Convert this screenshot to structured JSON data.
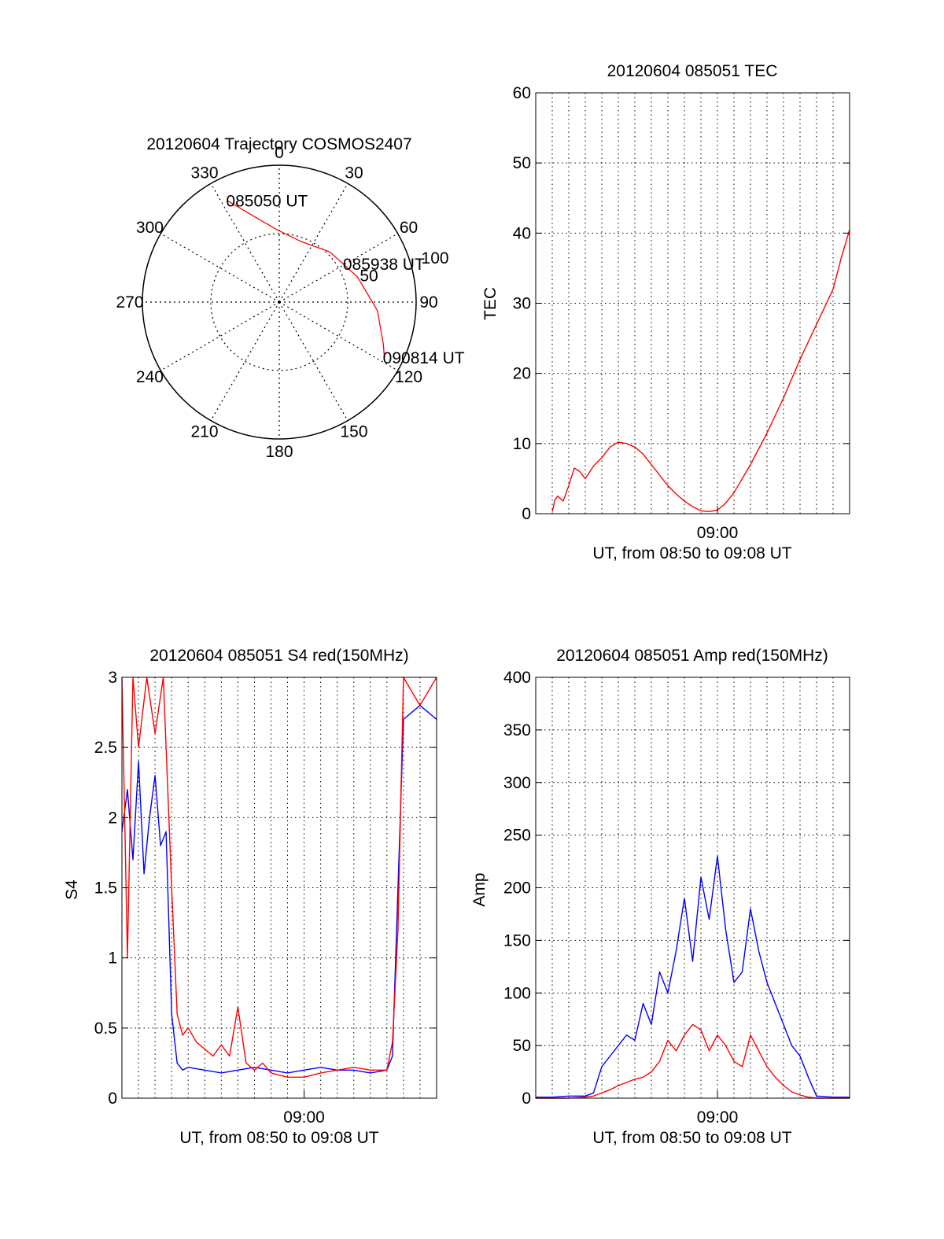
{
  "chart_data": [
    {
      "type": "polar",
      "title": "20120604 Trajectory COSMOS2407",
      "angle_labels": [
        "0",
        "30",
        "60",
        "90",
        "120",
        "150",
        "180",
        "210",
        "240",
        "270",
        "300",
        "330"
      ],
      "radius_labels": [
        "50",
        "100"
      ],
      "radius_max": 100,
      "grid": true,
      "trajectory": {
        "color": "#ff0000",
        "points": [
          {
            "az": 333,
            "r": 83
          },
          {
            "az": 343,
            "r": 66
          },
          {
            "az": 358,
            "r": 53
          },
          {
            "az": 20,
            "r": 47
          },
          {
            "az": 45,
            "r": 52
          },
          {
            "az": 72,
            "r": 60
          },
          {
            "az": 95,
            "r": 72
          },
          {
            "az": 112,
            "r": 82
          },
          {
            "az": 118,
            "r": 87
          }
        ]
      },
      "annotations": [
        {
          "text": "085050 UT",
          "az": 333,
          "r": 83
        },
        {
          "text": "085938 UT",
          "az": 60,
          "r": 55
        },
        {
          "text": "090814 UT",
          "az": 118,
          "r": 87
        }
      ]
    },
    {
      "type": "line",
      "title": "20120604 085051 TEC",
      "xlabel": "UT, from 08:50 to 09:08 UT",
      "ylabel": "TEC",
      "x_range": [
        "08:49",
        "09:08"
      ],
      "x_tick_labels": [
        "09:00"
      ],
      "ylim": [
        0,
        60
      ],
      "y_ticks": [
        0,
        10,
        20,
        30,
        40,
        50,
        60
      ],
      "grid": true,
      "series": [
        {
          "color": "#ff0000",
          "x": [
            "08:50:00",
            "08:50:10",
            "08:50:20",
            "08:50:40",
            "08:51:00",
            "08:51:20",
            "08:51:40",
            "08:52:00",
            "08:52:30",
            "08:53:00",
            "08:53:30",
            "08:54:00",
            "08:54:30",
            "08:55:00",
            "08:55:30",
            "08:56:00",
            "08:56:30",
            "08:57:00",
            "08:57:30",
            "08:58:00",
            "08:58:30",
            "08:59:00",
            "08:59:30",
            "09:00:00",
            "09:00:30",
            "09:01:00",
            "09:02:00",
            "09:03:00",
            "09:04:00",
            "09:05:00",
            "09:06:00",
            "09:07:00",
            "09:07:30",
            "09:08:00"
          ],
          "values": [
            0.3,
            2.0,
            2.5,
            1.8,
            4.0,
            6.5,
            6.0,
            5.0,
            6.8,
            8.0,
            9.5,
            10.2,
            10.0,
            9.5,
            8.5,
            7.0,
            5.5,
            4.0,
            2.8,
            1.8,
            1.0,
            0.4,
            0.3,
            0.5,
            1.5,
            3.0,
            7.0,
            11.5,
            16.5,
            22.0,
            27.0,
            32.0,
            36.5,
            40.5
          ]
        }
      ]
    },
    {
      "type": "line",
      "title": "20120604 085051 S4 red(150MHz)",
      "xlabel": "UT, from 08:50 to 09:08 UT",
      "ylabel": "S4",
      "x_range": [
        "08:49",
        "09:08"
      ],
      "x_tick_labels": [
        "09:00"
      ],
      "ylim": [
        0,
        3
      ],
      "y_ticks": [
        0,
        0.5,
        1,
        1.5,
        2,
        2.5,
        3
      ],
      "grid": true,
      "series": [
        {
          "color": "#0000ff",
          "x": [
            "08:49:00",
            "08:49:20",
            "08:49:40",
            "08:50:00",
            "08:50:20",
            "08:50:40",
            "08:51:00",
            "08:51:20",
            "08:51:40",
            "08:52:00",
            "08:52:20",
            "08:52:40",
            "08:53:00",
            "08:54:00",
            "08:55:00",
            "08:56:00",
            "08:57:00",
            "08:58:00",
            "08:59:00",
            "09:00:00",
            "09:01:00",
            "09:02:00",
            "09:03:00",
            "09:04:00",
            "09:05:00",
            "09:05:20",
            "09:05:40",
            "09:06:00",
            "09:07:00",
            "09:08:00"
          ],
          "values": [
            1.9,
            2.2,
            1.7,
            2.4,
            1.6,
            2.0,
            2.3,
            1.8,
            1.9,
            0.6,
            0.25,
            0.2,
            0.22,
            0.2,
            0.18,
            0.2,
            0.22,
            0.2,
            0.18,
            0.2,
            0.22,
            0.2,
            0.2,
            0.18,
            0.2,
            0.3,
            1.5,
            2.7,
            2.8,
            2.7
          ]
        },
        {
          "color": "#ff0000",
          "x": [
            "08:49:00",
            "08:49:20",
            "08:49:40",
            "08:50:00",
            "08:50:30",
            "08:51:00",
            "08:51:30",
            "08:52:00",
            "08:52:20",
            "08:52:40",
            "08:53:00",
            "08:53:30",
            "08:54:00",
            "08:54:30",
            "08:55:00",
            "08:55:30",
            "08:56:00",
            "08:56:30",
            "08:57:00",
            "08:57:30",
            "08:58:00",
            "08:59:00",
            "09:00:00",
            "09:01:00",
            "09:02:00",
            "09:03:00",
            "09:04:00",
            "09:05:00",
            "09:05:20",
            "09:05:40",
            "09:06:00",
            "09:07:00",
            "09:08:00"
          ],
          "values": [
            3.0,
            1.0,
            3.0,
            2.5,
            3.0,
            2.6,
            3.0,
            1.5,
            0.6,
            0.45,
            0.5,
            0.4,
            0.35,
            0.3,
            0.38,
            0.3,
            0.65,
            0.25,
            0.2,
            0.25,
            0.18,
            0.15,
            0.15,
            0.18,
            0.2,
            0.22,
            0.2,
            0.2,
            0.4,
            1.2,
            3.0,
            2.8,
            3.0
          ]
        }
      ]
    },
    {
      "type": "line",
      "title": "20120604 085051 Amp red(150MHz)",
      "xlabel": "UT, from 08:50 to 09:08 UT",
      "ylabel": "Amp",
      "x_range": [
        "08:49",
        "09:08"
      ],
      "x_tick_labels": [
        "09:00"
      ],
      "ylim": [
        0,
        400
      ],
      "y_ticks": [
        0,
        50,
        100,
        150,
        200,
        250,
        300,
        350,
        400
      ],
      "grid": true,
      "series": [
        {
          "color": "#0000ff",
          "x": [
            "08:49:00",
            "08:50:00",
            "08:51:00",
            "08:52:00",
            "08:52:30",
            "08:53:00",
            "08:53:30",
            "08:54:00",
            "08:54:30",
            "08:55:00",
            "08:55:30",
            "08:56:00",
            "08:56:30",
            "08:57:00",
            "08:57:30",
            "08:58:00",
            "08:58:30",
            "08:59:00",
            "08:59:30",
            "09:00:00",
            "09:00:30",
            "09:01:00",
            "09:01:30",
            "09:02:00",
            "09:02:30",
            "09:03:00",
            "09:03:30",
            "09:04:00",
            "09:04:30",
            "09:05:00",
            "09:05:30",
            "09:06:00",
            "09:07:00",
            "09:08:00"
          ],
          "values": [
            1,
            1,
            2,
            2,
            5,
            30,
            40,
            50,
            60,
            55,
            90,
            70,
            120,
            100,
            140,
            190,
            130,
            210,
            170,
            230,
            160,
            110,
            120,
            180,
            140,
            110,
            90,
            70,
            50,
            40,
            20,
            2,
            1,
            1
          ]
        },
        {
          "color": "#ff0000",
          "x": [
            "08:49:00",
            "08:50:00",
            "08:51:00",
            "08:52:00",
            "08:52:30",
            "08:53:00",
            "08:53:30",
            "08:54:00",
            "08:54:30",
            "08:55:00",
            "08:55:30",
            "08:56:00",
            "08:56:30",
            "08:57:00",
            "08:57:30",
            "08:58:00",
            "08:58:30",
            "08:59:00",
            "08:59:30",
            "09:00:00",
            "09:00:30",
            "09:01:00",
            "09:01:30",
            "09:02:00",
            "09:02:30",
            "09:03:00",
            "09:03:30",
            "09:04:00",
            "09:04:30",
            "09:05:00",
            "09:05:30",
            "09:06:00",
            "09:07:00",
            "09:08:00"
          ],
          "values": [
            0,
            0,
            0,
            1,
            2,
            5,
            8,
            12,
            15,
            18,
            20,
            25,
            35,
            55,
            45,
            60,
            70,
            65,
            45,
            60,
            50,
            35,
            30,
            60,
            45,
            30,
            20,
            12,
            6,
            3,
            1,
            0,
            0,
            0
          ]
        }
      ]
    }
  ]
}
